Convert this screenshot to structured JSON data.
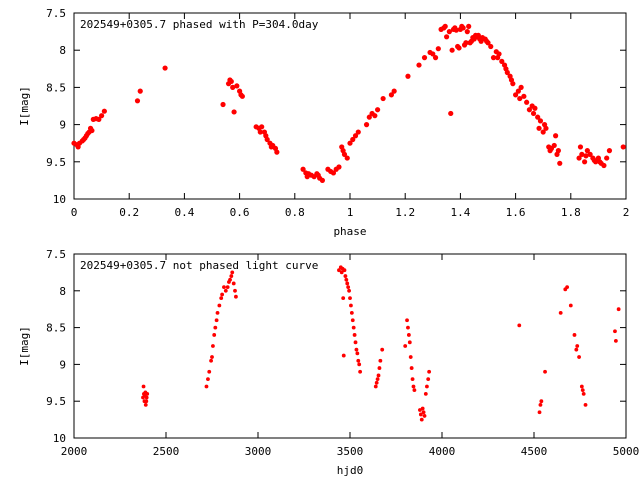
{
  "chart_data": [
    {
      "type": "scatter",
      "title": "202549+0305.7 phased with P=304.0day",
      "xlabel": "phase",
      "ylabel": "I[mag]",
      "xlim": [
        0,
        2
      ],
      "ylim": [
        7.5,
        10
      ],
      "y_inverted": true,
      "grid": false,
      "xticks": [
        "0",
        "0.2",
        "0.4",
        "0.6",
        "0.8",
        "1",
        "1.2",
        "1.4",
        "1.6",
        "1.8",
        "2"
      ],
      "yticks": [
        "7.5",
        "8",
        "8.5",
        "9",
        "9.5",
        "10"
      ],
      "marker_color": "#ff0000",
      "points": [
        [
          0.0,
          9.25
        ],
        [
          0.01,
          9.27
        ],
        [
          0.015,
          9.3
        ],
        [
          0.02,
          9.25
        ],
        [
          0.03,
          9.22
        ],
        [
          0.035,
          9.2
        ],
        [
          0.04,
          9.18
        ],
        [
          0.045,
          9.15
        ],
        [
          0.05,
          9.12
        ],
        [
          0.055,
          9.1
        ],
        [
          0.06,
          9.05
        ],
        [
          0.065,
          9.08
        ],
        [
          0.07,
          8.93
        ],
        [
          0.08,
          8.92
        ],
        [
          0.09,
          8.93
        ],
        [
          0.1,
          8.88
        ],
        [
          0.11,
          8.82
        ],
        [
          0.23,
          8.68
        ],
        [
          0.24,
          8.55
        ],
        [
          0.33,
          8.24
        ],
        [
          0.54,
          8.73
        ],
        [
          0.56,
          8.45
        ],
        [
          0.565,
          8.4
        ],
        [
          0.57,
          8.42
        ],
        [
          0.575,
          8.5
        ],
        [
          0.58,
          8.83
        ],
        [
          0.59,
          8.48
        ],
        [
          0.6,
          8.55
        ],
        [
          0.605,
          8.6
        ],
        [
          0.61,
          8.62
        ],
        [
          0.66,
          9.03
        ],
        [
          0.67,
          9.05
        ],
        [
          0.675,
          9.1
        ],
        [
          0.68,
          9.03
        ],
        [
          0.69,
          9.1
        ],
        [
          0.695,
          9.15
        ],
        [
          0.7,
          9.2
        ],
        [
          0.71,
          9.25
        ],
        [
          0.715,
          9.3
        ],
        [
          0.72,
          9.28
        ],
        [
          0.73,
          9.32
        ],
        [
          0.735,
          9.37
        ],
        [
          0.83,
          9.6
        ],
        [
          0.84,
          9.65
        ],
        [
          0.845,
          9.7
        ],
        [
          0.85,
          9.66
        ],
        [
          0.86,
          9.68
        ],
        [
          0.87,
          9.7
        ],
        [
          0.88,
          9.66
        ],
        [
          0.885,
          9.68
        ],
        [
          0.89,
          9.72
        ],
        [
          0.9,
          9.75
        ],
        [
          0.92,
          9.6
        ],
        [
          0.93,
          9.63
        ],
        [
          0.94,
          9.65
        ],
        [
          0.95,
          9.6
        ],
        [
          0.96,
          9.57
        ],
        [
          0.97,
          9.3
        ],
        [
          0.975,
          9.35
        ],
        [
          0.98,
          9.4
        ],
        [
          0.99,
          9.45
        ],
        [
          1.0,
          9.25
        ],
        [
          1.01,
          9.2
        ],
        [
          1.02,
          9.15
        ],
        [
          1.03,
          9.1
        ],
        [
          1.06,
          9.0
        ],
        [
          1.07,
          8.9
        ],
        [
          1.08,
          8.85
        ],
        [
          1.09,
          8.88
        ],
        [
          1.1,
          8.8
        ],
        [
          1.12,
          8.65
        ],
        [
          1.15,
          8.6
        ],
        [
          1.16,
          8.55
        ],
        [
          1.21,
          8.35
        ],
        [
          1.25,
          8.2
        ],
        [
          1.27,
          8.1
        ],
        [
          1.29,
          8.03
        ],
        [
          1.3,
          8.05
        ],
        [
          1.31,
          8.1
        ],
        [
          1.32,
          7.98
        ],
        [
          1.33,
          7.72
        ],
        [
          1.34,
          7.7
        ],
        [
          1.345,
          7.68
        ],
        [
          1.35,
          7.82
        ],
        [
          1.36,
          7.75
        ],
        [
          1.365,
          8.85
        ],
        [
          1.37,
          8.0
        ],
        [
          1.375,
          7.72
        ],
        [
          1.38,
          7.7
        ],
        [
          1.385,
          7.73
        ],
        [
          1.39,
          7.95
        ],
        [
          1.395,
          7.97
        ],
        [
          1.4,
          7.72
        ],
        [
          1.405,
          7.68
        ],
        [
          1.41,
          7.7
        ],
        [
          1.415,
          7.93
        ],
        [
          1.42,
          7.9
        ],
        [
          1.425,
          7.75
        ],
        [
          1.43,
          7.68
        ],
        [
          1.435,
          7.9
        ],
        [
          1.44,
          7.88
        ],
        [
          1.445,
          7.83
        ],
        [
          1.45,
          7.85
        ],
        [
          1.455,
          7.8
        ],
        [
          1.46,
          7.82
        ],
        [
          1.465,
          7.8
        ],
        [
          1.47,
          7.85
        ],
        [
          1.475,
          7.88
        ],
        [
          1.48,
          7.83
        ],
        [
          1.49,
          7.85
        ],
        [
          1.495,
          7.88
        ],
        [
          1.5,
          7.9
        ],
        [
          1.51,
          7.95
        ],
        [
          1.52,
          8.1
        ],
        [
          1.53,
          8.02
        ],
        [
          1.535,
          8.1
        ],
        [
          1.54,
          8.05
        ],
        [
          1.55,
          8.15
        ],
        [
          1.56,
          8.2
        ],
        [
          1.565,
          8.25
        ],
        [
          1.57,
          8.3
        ],
        [
          1.58,
          8.35
        ],
        [
          1.585,
          8.4
        ],
        [
          1.59,
          8.45
        ],
        [
          1.6,
          8.6
        ],
        [
          1.61,
          8.55
        ],
        [
          1.615,
          8.65
        ],
        [
          1.62,
          8.5
        ],
        [
          1.63,
          8.62
        ],
        [
          1.64,
          8.7
        ],
        [
          1.65,
          8.8
        ],
        [
          1.66,
          8.75
        ],
        [
          1.665,
          8.85
        ],
        [
          1.67,
          8.78
        ],
        [
          1.68,
          8.9
        ],
        [
          1.685,
          9.05
        ],
        [
          1.69,
          8.95
        ],
        [
          1.7,
          9.1
        ],
        [
          1.705,
          9.0
        ],
        [
          1.71,
          9.05
        ],
        [
          1.72,
          9.3
        ],
        [
          1.725,
          9.35
        ],
        [
          1.73,
          9.32
        ],
        [
          1.74,
          9.28
        ],
        [
          1.745,
          9.15
        ],
        [
          1.75,
          9.4
        ],
        [
          1.755,
          9.35
        ],
        [
          1.76,
          9.52
        ],
        [
          1.83,
          9.45
        ],
        [
          1.835,
          9.3
        ],
        [
          1.84,
          9.4
        ],
        [
          1.85,
          9.5
        ],
        [
          1.855,
          9.42
        ],
        [
          1.86,
          9.35
        ],
        [
          1.87,
          9.4
        ],
        [
          1.88,
          9.45
        ],
        [
          1.885,
          9.48
        ],
        [
          1.89,
          9.5
        ],
        [
          1.9,
          9.45
        ],
        [
          1.905,
          9.5
        ],
        [
          1.91,
          9.52
        ],
        [
          1.92,
          9.55
        ],
        [
          1.93,
          9.45
        ],
        [
          1.94,
          9.35
        ],
        [
          1.99,
          9.3
        ]
      ]
    },
    {
      "type": "scatter",
      "title": "202549+0305.7 not phased light curve",
      "xlabel": "hjd0",
      "ylabel": "I[mag]",
      "xlim": [
        2000,
        5000
      ],
      "ylim": [
        7.5,
        10
      ],
      "y_inverted": true,
      "grid": false,
      "xticks": [
        "2000",
        "2500",
        "3000",
        "3500",
        "4000",
        "4500",
        "5000"
      ],
      "yticks": [
        "7.5",
        "8",
        "8.5",
        "9",
        "9.5",
        "10"
      ],
      "marker_color": "#ff0000",
      "points": [
        [
          2375,
          9.45
        ],
        [
          2378,
          9.3
        ],
        [
          2380,
          9.4
        ],
        [
          2383,
          9.5
        ],
        [
          2385,
          9.42
        ],
        [
          2388,
          9.38
        ],
        [
          2390,
          9.55
        ],
        [
          2393,
          9.5
        ],
        [
          2395,
          9.45
        ],
        [
          2398,
          9.4
        ],
        [
          2720,
          9.3
        ],
        [
          2728,
          9.2
        ],
        [
          2735,
          9.1
        ],
        [
          2745,
          8.95
        ],
        [
          2750,
          8.9
        ],
        [
          2755,
          8.75
        ],
        [
          2762,
          8.6
        ],
        [
          2768,
          8.5
        ],
        [
          2775,
          8.4
        ],
        [
          2780,
          8.3
        ],
        [
          2790,
          8.2
        ],
        [
          2800,
          8.1
        ],
        [
          2805,
          8.05
        ],
        [
          2815,
          7.95
        ],
        [
          2825,
          8.0
        ],
        [
          2835,
          7.95
        ],
        [
          2842,
          7.88
        ],
        [
          2848,
          7.85
        ],
        [
          2855,
          7.8
        ],
        [
          2860,
          7.75
        ],
        [
          2868,
          7.9
        ],
        [
          2875,
          8.0
        ],
        [
          2880,
          8.08
        ],
        [
          3440,
          7.72
        ],
        [
          3450,
          7.68
        ],
        [
          3455,
          7.75
        ],
        [
          3460,
          7.7
        ],
        [
          3463,
          8.1
        ],
        [
          3466,
          8.88
        ],
        [
          3470,
          7.72
        ],
        [
          3475,
          7.8
        ],
        [
          3480,
          7.85
        ],
        [
          3485,
          7.9
        ],
        [
          3490,
          7.95
        ],
        [
          3495,
          8.0
        ],
        [
          3500,
          8.1
        ],
        [
          3505,
          8.2
        ],
        [
          3510,
          8.3
        ],
        [
          3515,
          8.4
        ],
        [
          3520,
          8.5
        ],
        [
          3525,
          8.6
        ],
        [
          3530,
          8.7
        ],
        [
          3535,
          8.8
        ],
        [
          3540,
          8.85
        ],
        [
          3545,
          8.95
        ],
        [
          3550,
          9.0
        ],
        [
          3555,
          9.1
        ],
        [
          3640,
          9.3
        ],
        [
          3645,
          9.25
        ],
        [
          3650,
          9.2
        ],
        [
          3655,
          9.15
        ],
        [
          3660,
          9.05
        ],
        [
          3665,
          8.95
        ],
        [
          3675,
          8.8
        ],
        [
          3800,
          8.75
        ],
        [
          3810,
          8.4
        ],
        [
          3815,
          8.5
        ],
        [
          3820,
          8.6
        ],
        [
          3825,
          8.7
        ],
        [
          3830,
          8.9
        ],
        [
          3835,
          9.05
        ],
        [
          3840,
          9.2
        ],
        [
          3845,
          9.3
        ],
        [
          3850,
          9.35
        ],
        [
          3880,
          9.62
        ],
        [
          3885,
          9.68
        ],
        [
          3890,
          9.75
        ],
        [
          3895,
          9.6
        ],
        [
          3900,
          9.65
        ],
        [
          3905,
          9.7
        ],
        [
          3912,
          9.4
        ],
        [
          3918,
          9.3
        ],
        [
          3925,
          9.2
        ],
        [
          3930,
          9.1
        ],
        [
          4420,
          8.47
        ],
        [
          4530,
          9.65
        ],
        [
          4535,
          9.55
        ],
        [
          4540,
          9.5
        ],
        [
          4560,
          9.1
        ],
        [
          4645,
          8.3
        ],
        [
          4670,
          7.98
        ],
        [
          4680,
          7.95
        ],
        [
          4700,
          8.2
        ],
        [
          4720,
          8.6
        ],
        [
          4730,
          8.8
        ],
        [
          4735,
          8.75
        ],
        [
          4745,
          8.9
        ],
        [
          4760,
          9.3
        ],
        [
          4765,
          9.35
        ],
        [
          4770,
          9.4
        ],
        [
          4780,
          9.55
        ],
        [
          4940,
          8.55
        ],
        [
          4945,
          8.68
        ],
        [
          4960,
          8.25
        ]
      ]
    }
  ]
}
